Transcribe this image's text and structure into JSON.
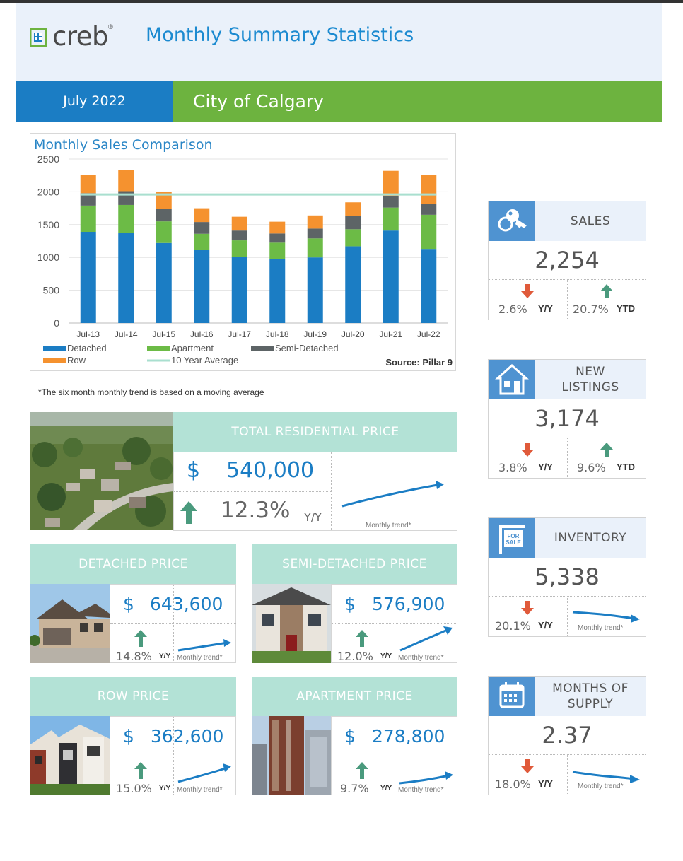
{
  "header": {
    "logo_text": "creb",
    "logo_reg": "®",
    "title": "Monthly Summary Statistics",
    "month": "July 2022",
    "region": "City of Calgary"
  },
  "colors": {
    "blue": "#1b7dc4",
    "green": "#6db33f",
    "mint": "#b3e2d6",
    "detached": "#1b7dc4",
    "apartment": "#6cbb46",
    "semi": "#5d6466",
    "row": "#f5922f",
    "avg": "#a9dfcf",
    "up_arrow": "#4a9a7d",
    "down_arrow": "#e05a3a"
  },
  "chart_data": {
    "type": "bar",
    "title": "Monthly Sales Comparison",
    "stacked": true,
    "categories": [
      "Jul-13",
      "Jul-14",
      "Jul-15",
      "Jul-16",
      "Jul-17",
      "Jul-18",
      "Jul-19",
      "Jul-20",
      "Jul-21",
      "Jul-22"
    ],
    "series": [
      {
        "name": "Detached",
        "color": "#1b7dc4",
        "values": [
          1390,
          1370,
          1220,
          1110,
          1010,
          975,
          1000,
          1170,
          1410,
          1130
        ]
      },
      {
        "name": "Apartment",
        "color": "#6cbb46",
        "values": [
          400,
          430,
          330,
          250,
          250,
          250,
          290,
          260,
          350,
          520
        ]
      },
      {
        "name": "Semi-Detached",
        "color": "#5d6466",
        "values": [
          190,
          210,
          190,
          180,
          150,
          140,
          150,
          200,
          180,
          170
        ]
      },
      {
        "name": "Row",
        "color": "#f5922f",
        "values": [
          280,
          320,
          260,
          210,
          210,
          180,
          200,
          210,
          380,
          440
        ]
      }
    ],
    "average": {
      "name": "10 Year Average",
      "value": 1960
    },
    "ylim": [
      0,
      2500
    ],
    "yticks": [
      0,
      500,
      1000,
      1500,
      2000,
      2500
    ],
    "grid": true,
    "legend_position": "bottom",
    "source": "Source: Pillar 9"
  },
  "footnote": "*The six month monthly trend is based on a moving average",
  "total": {
    "label": "TOTAL RESIDENTIAL PRICE",
    "currency": "$",
    "value": "540,000",
    "pct": "12.3%",
    "yy": "Y/Y",
    "trend_label": "Monthly trend*"
  },
  "detached": {
    "label": "DETACHED PRICE",
    "currency": "$",
    "value": "643,600",
    "pct": "14.8%",
    "yy": "Y/Y",
    "trend_label": "Monthly trend*"
  },
  "semi": {
    "label": "SEMI-DETACHED PRICE",
    "currency": "$",
    "value": "576,900",
    "pct": "12.0%",
    "yy": "Y/Y",
    "trend_label": "Monthly trend*"
  },
  "row": {
    "label": "ROW PRICE",
    "currency": "$",
    "value": "362,600",
    "pct": "15.0%",
    "yy": "Y/Y",
    "trend_label": "Monthly trend*"
  },
  "apartment": {
    "label": "APARTMENT PRICE",
    "currency": "$",
    "value": "278,800",
    "pct": "9.7%",
    "yy": "Y/Y",
    "trend_label": "Monthly trend*"
  },
  "stats": {
    "sales": {
      "label": "SALES",
      "value": "2,254",
      "pct1": "2.6%",
      "tag1": "Y/Y",
      "pct2": "20.7%",
      "tag2": "YTD",
      "icon": "keys-icon"
    },
    "new_listings": {
      "label1": "NEW",
      "label2": "LISTINGS",
      "value": "3,174",
      "pct1": "3.8%",
      "tag1": "Y/Y",
      "pct2": "9.6%",
      "tag2": "YTD",
      "icon": "house-icon"
    },
    "inventory": {
      "label": "INVENTORY",
      "value": "5,338",
      "pct1": "20.1%",
      "tag1": "Y/Y",
      "trend_label": "Monthly trend*",
      "icon": "for-sale-sign-icon",
      "sign_text1": "FOR",
      "sign_text2": "SALE"
    },
    "months_supply": {
      "label1": "MONTHS OF",
      "label2": "SUPPLY",
      "value": "2.37",
      "pct1": "18.0%",
      "tag1": "Y/Y",
      "trend_label": "Monthly trend*",
      "icon": "calendar-icon"
    }
  }
}
